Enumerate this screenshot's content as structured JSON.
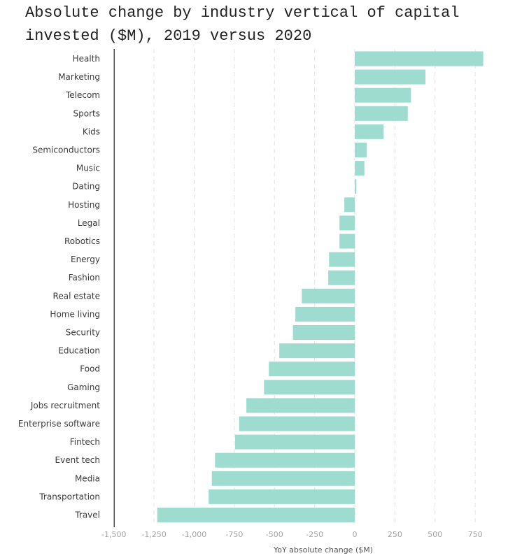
{
  "chart_data": {
    "type": "bar",
    "orientation": "horizontal",
    "title": "Absolute change by industry vertical of capital invested ($M), 2019 versus 2020",
    "xlabel": "YoY absolute change ($M)",
    "ylabel": "",
    "xlim": [
      -1500,
      850
    ],
    "xticks": [
      -1500,
      -1250,
      -1000,
      -750,
      -500,
      -250,
      0,
      250,
      500,
      750
    ],
    "xtick_labels": [
      "-1,500",
      "-1,250",
      "-1,000",
      "-750",
      "-500",
      "-250",
      "0",
      "250",
      "500",
      "750"
    ],
    "grid": true,
    "bar_color": "#9edccf",
    "categories": [
      "Health",
      "Marketing",
      "Telecom",
      "Sports",
      "Kids",
      "Semiconductors",
      "Music",
      "Dating",
      "Hosting",
      "Legal",
      "Robotics",
      "Energy",
      "Fashion",
      "Real estate",
      "Home living",
      "Security",
      "Education",
      "Food",
      "Gaming",
      "Jobs recruitment",
      "Enterprise software",
      "Fintech",
      "Event tech",
      "Media",
      "Transportation",
      "Travel"
    ],
    "values": [
      800,
      440,
      350,
      330,
      180,
      75,
      60,
      10,
      -65,
      -95,
      -95,
      -160,
      -165,
      -330,
      -370,
      -385,
      -470,
      -535,
      -565,
      -675,
      -720,
      -745,
      -870,
      -890,
      -910,
      -1230
    ]
  }
}
